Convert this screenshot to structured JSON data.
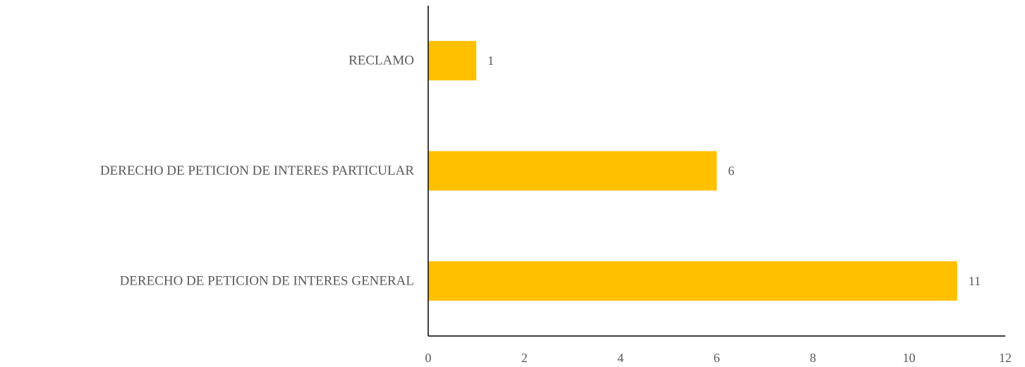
{
  "chart_data": {
    "type": "bar",
    "orientation": "horizontal",
    "categories": [
      "RECLAMO",
      "DERECHO DE PETICION DE INTERES PARTICULAR",
      "DERECHO DE PETICION DE INTERES GENERAL"
    ],
    "values": [
      1,
      6,
      11
    ],
    "xlim": [
      0,
      12
    ],
    "x_ticks": [
      0,
      2,
      4,
      6,
      8,
      10,
      12
    ],
    "title": "",
    "xlabel": "",
    "ylabel": "",
    "grid": false,
    "data_labels": true,
    "bar_color": "#FFC000"
  }
}
